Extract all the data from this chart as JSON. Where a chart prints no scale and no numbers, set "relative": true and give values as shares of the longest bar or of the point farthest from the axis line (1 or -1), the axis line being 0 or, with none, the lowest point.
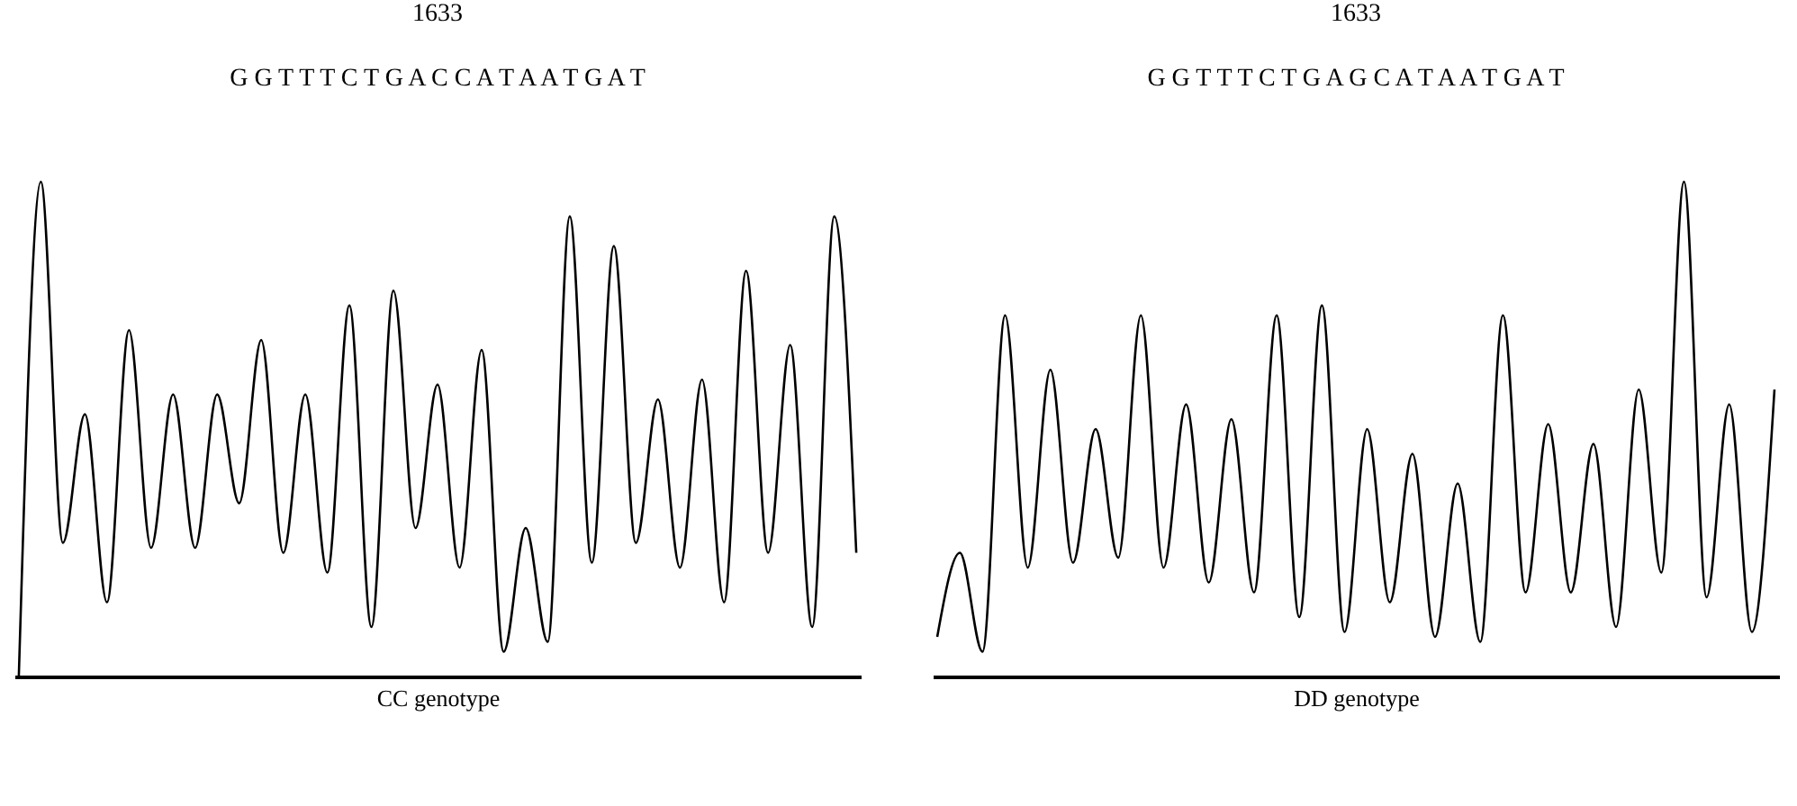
{
  "chart_data": [
    {
      "type": "line",
      "title": "1633",
      "subtitle": "G G T T T C T G A C C A T A A T G A T",
      "xlabel": "CC genotype",
      "relative": true,
      "tick_labels": false,
      "grid": false,
      "legend": false,
      "marker": "none",
      "line_style": "solid",
      "categories": [
        null,
        null,
        null,
        null,
        null,
        null,
        null,
        null,
        null,
        null,
        null,
        null,
        null,
        null,
        null,
        null,
        null,
        null,
        null,
        null,
        null,
        null,
        null,
        null,
        null,
        null,
        null,
        null,
        null,
        null,
        null,
        null,
        null,
        null,
        null,
        null,
        null,
        null,
        null
      ],
      "series": [
        {
          "color": "#000000",
          "values": [
            0,
            1.0,
            0.27,
            0.53,
            0.15,
            0.7,
            0.26,
            0.57,
            0.26,
            0.57,
            0.35,
            0.68,
            0.25,
            0.57,
            0.21,
            0.75,
            0.1,
            0.78,
            0.3,
            0.59,
            0.22,
            0.66,
            0.05,
            0.3,
            0.07,
            0.93,
            0.23,
            0.87,
            0.27,
            0.56,
            0.22,
            0.6,
            0.15,
            0.82,
            0.25,
            0.67,
            0.1,
            0.93,
            0.25
          ]
        }
      ]
    },
    {
      "type": "line",
      "title": "1633",
      "subtitle": "G G T T T C T G A G C A T A A T G A T",
      "xlabel": "DD genotype",
      "relative": true,
      "tick_labels": false,
      "grid": false,
      "legend": false,
      "marker": "none",
      "line_style": "solid",
      "categories": [
        null,
        null,
        null,
        null,
        null,
        null,
        null,
        null,
        null,
        null,
        null,
        null,
        null,
        null,
        null,
        null,
        null,
        null,
        null,
        null,
        null,
        null,
        null,
        null,
        null,
        null,
        null,
        null,
        null,
        null,
        null,
        null,
        null,
        null,
        null,
        null,
        null,
        null
      ],
      "series": [
        {
          "color": "#000000",
          "values": [
            0.08,
            0.25,
            0.05,
            0.73,
            0.22,
            0.62,
            0.23,
            0.5,
            0.24,
            0.73,
            0.22,
            0.55,
            0.19,
            0.52,
            0.17,
            0.73,
            0.12,
            0.75,
            0.09,
            0.5,
            0.15,
            0.45,
            0.08,
            0.39,
            0.07,
            0.73,
            0.17,
            0.51,
            0.17,
            0.47,
            0.1,
            0.58,
            0.21,
            1.0,
            0.16,
            0.55,
            0.09,
            0.58
          ]
        }
      ]
    }
  ]
}
